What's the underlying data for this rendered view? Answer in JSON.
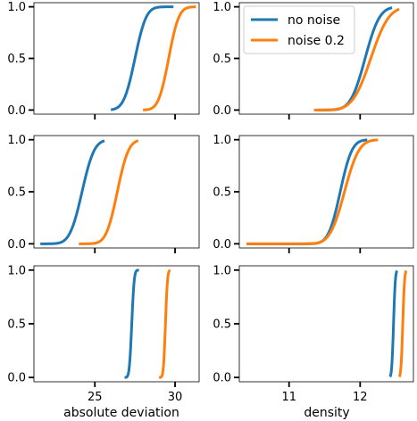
{
  "figure": {
    "xlabels": [
      "absolute deviation",
      "density"
    ]
  },
  "legend": {
    "placement": "upper-right-of-top-right-panel",
    "entries": [
      {
        "label": "no noise",
        "color": "#1f77b4"
      },
      {
        "label": "noise 0.2",
        "color": "#ff7f0e"
      }
    ]
  },
  "chart_data": [
    {
      "type": "line",
      "row": 0,
      "col": 0,
      "xlim": [
        21.2,
        31.5
      ],
      "ylim": [
        -0.04,
        1.04
      ],
      "xticks": [
        25,
        30
      ],
      "xtick_labels": [
        "",
        ""
      ],
      "yticks": [
        0,
        0.5,
        1
      ],
      "ytick_labels": [
        "0.0",
        "0.5",
        "1.0"
      ],
      "series": [
        {
          "name": "no noise",
          "color": "#1f77b4",
          "cdf_mu": 27.5,
          "cdf_sigma": 0.55,
          "x_range": [
            26.0,
            29.9
          ]
        },
        {
          "name": "noise 0.2",
          "color": "#ff7f0e",
          "cdf_mu": 29.6,
          "cdf_sigma": 0.5,
          "x_range": [
            28.0,
            31.3
          ]
        }
      ]
    },
    {
      "type": "line",
      "row": 0,
      "col": 1,
      "xlim": [
        10.3,
        12.75
      ],
      "ylim": [
        -0.04,
        1.04
      ],
      "xticks": [
        11,
        12
      ],
      "xtick_labels": [
        "",
        ""
      ],
      "yticks": [
        0,
        0.5,
        1
      ],
      "ytick_labels": [
        "0.0",
        "0.5",
        "1.0"
      ],
      "series": [
        {
          "name": "no noise",
          "color": "#1f77b4",
          "cdf_mu": 12.07,
          "cdf_sigma": 0.16,
          "x_range": [
            11.4,
            12.45
          ]
        },
        {
          "name": "noise 0.2",
          "color": "#ff7f0e",
          "cdf_mu": 12.15,
          "cdf_sigma": 0.2,
          "x_range": [
            11.35,
            12.55
          ]
        }
      ]
    },
    {
      "type": "line",
      "row": 1,
      "col": 0,
      "xlim": [
        21.2,
        31.5
      ],
      "ylim": [
        -0.04,
        1.04
      ],
      "xticks": [
        25,
        30
      ],
      "xtick_labels": [
        "",
        ""
      ],
      "yticks": [
        0,
        0.5,
        1
      ],
      "ytick_labels": [
        "0.0",
        "0.5",
        "1.0"
      ],
      "series": [
        {
          "name": "no noise",
          "color": "#1f77b4",
          "cdf_mu": 24.2,
          "cdf_sigma": 0.6,
          "x_range": [
            21.6,
            25.6
          ]
        },
        {
          "name": "noise 0.2",
          "color": "#ff7f0e",
          "cdf_mu": 26.4,
          "cdf_sigma": 0.55,
          "x_range": [
            24.0,
            27.7
          ]
        }
      ]
    },
    {
      "type": "line",
      "row": 1,
      "col": 1,
      "xlim": [
        10.3,
        12.75
      ],
      "ylim": [
        -0.04,
        1.04
      ],
      "xticks": [
        11,
        12
      ],
      "xtick_labels": [
        "",
        ""
      ],
      "yticks": [
        0,
        0.5,
        1
      ],
      "ytick_labels": [
        "0.0",
        "0.5",
        "1.0"
      ],
      "series": [
        {
          "name": "no noise",
          "color": "#1f77b4",
          "cdf_mu": 11.72,
          "cdf_sigma": 0.13,
          "x_range": [
            10.4,
            12.1
          ]
        },
        {
          "name": "noise 0.2",
          "color": "#ff7f0e",
          "cdf_mu": 11.78,
          "cdf_sigma": 0.16,
          "x_range": [
            10.4,
            12.25
          ]
        }
      ]
    },
    {
      "type": "line",
      "row": 2,
      "col": 0,
      "xlim": [
        21.2,
        31.5
      ],
      "ylim": [
        -0.04,
        1.04
      ],
      "xticks": [
        25,
        30
      ],
      "xtick_labels": [
        "25",
        "30"
      ],
      "yticks": [
        0,
        0.5,
        1
      ],
      "ytick_labels": [
        "0.0",
        "0.5",
        "1.0"
      ],
      "series": [
        {
          "name": "no noise",
          "color": "#1f77b4",
          "cdf_mu": 27.3,
          "cdf_sigma": 0.12,
          "x_range": [
            26.85,
            27.75
          ]
        },
        {
          "name": "noise 0.2",
          "color": "#ff7f0e",
          "cdf_mu": 29.4,
          "cdf_sigma": 0.1,
          "x_range": [
            29.0,
            29.7
          ]
        }
      ]
    },
    {
      "type": "line",
      "row": 2,
      "col": 1,
      "xlim": [
        10.3,
        12.75
      ],
      "ylim": [
        -0.04,
        1.04
      ],
      "xticks": [
        11,
        12
      ],
      "xtick_labels": [
        "11",
        "12"
      ],
      "yticks": [
        0,
        0.5,
        1
      ],
      "ytick_labels": [
        "0.0",
        "0.5",
        "1.0"
      ],
      "series": [
        {
          "name": "no noise",
          "color": "#1f77b4",
          "cdf_mu": 12.47,
          "cdf_sigma": 0.02,
          "x_range": [
            12.42,
            12.52
          ]
        },
        {
          "name": "noise 0.2",
          "color": "#ff7f0e",
          "cdf_mu": 12.6,
          "cdf_sigma": 0.02,
          "x_range": [
            12.55,
            12.65
          ]
        }
      ]
    }
  ]
}
